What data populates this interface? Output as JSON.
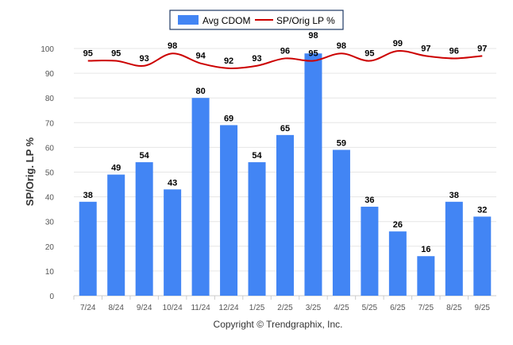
{
  "chart_data": {
    "type": "bar",
    "title": "",
    "xlabel": "",
    "ylabel": "SP/Orig. LP %",
    "ylim": [
      0,
      100
    ],
    "yticks": [
      0,
      10,
      20,
      30,
      40,
      50,
      60,
      70,
      80,
      90,
      100
    ],
    "grid": true,
    "legend_position": "top-center",
    "categories": [
      "7/24",
      "8/24",
      "9/24",
      "10/24",
      "11/24",
      "12/24",
      "1/25",
      "2/25",
      "3/25",
      "4/25",
      "5/25",
      "6/25",
      "7/25",
      "8/25",
      "9/25"
    ],
    "series": [
      {
        "name": "Avg CDOM",
        "type": "bar",
        "color": "#4285f4",
        "values": [
          38,
          49,
          54,
          43,
          80,
          69,
          54,
          65,
          98,
          59,
          36,
          26,
          16,
          38,
          32
        ]
      },
      {
        "name": "SP/Orig LP %",
        "type": "line",
        "color": "#cc0000",
        "values": [
          95,
          95,
          93,
          98,
          94,
          92,
          93,
          96,
          95,
          98,
          95,
          99,
          97,
          96,
          97
        ]
      }
    ]
  },
  "footer": {
    "copyright": "Copyright © Trendgraphix, Inc."
  }
}
